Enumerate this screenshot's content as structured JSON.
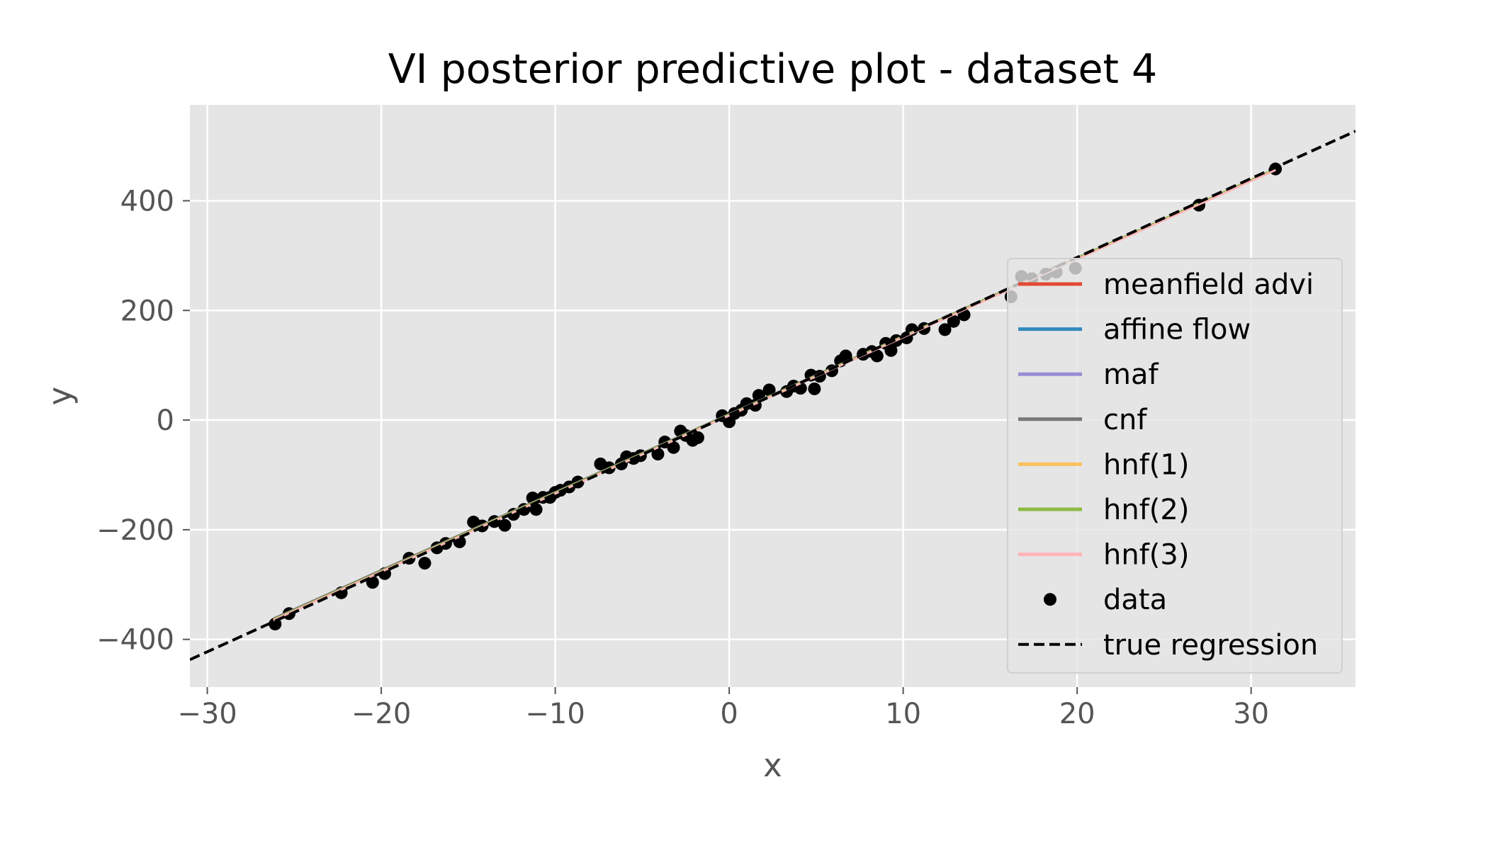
{
  "chart_data": {
    "type": "line",
    "title": "VI posterior predictive plot - dataset 4",
    "xlabel": "x",
    "ylabel": "y",
    "xlim": [
      -31,
      36
    ],
    "ylim": [
      -487,
      575
    ],
    "grid": true,
    "legend_position": "right",
    "xticks": [
      -30,
      -20,
      -10,
      0,
      10,
      20,
      30
    ],
    "xtick_labels": [
      "−30",
      "−20",
      "−10",
      "0",
      "10",
      "20",
      "30"
    ],
    "yticks": [
      -400,
      -200,
      0,
      200,
      400
    ],
    "ytick_labels": [
      "−400",
      "−200",
      "0",
      "200",
      "400"
    ],
    "series": [
      {
        "name": "meanfield advi",
        "kind": "line",
        "color": "#E24A33",
        "x": [
          -26.2,
          31.4
        ],
        "y": [
          -364,
          457
        ]
      },
      {
        "name": "affine flow",
        "kind": "line",
        "color": "#348ABD",
        "x": [
          -26.2,
          31.4
        ],
        "y": [
          -364,
          457
        ]
      },
      {
        "name": "maf",
        "kind": "line",
        "color": "#988ED5",
        "x": [
          -26.2,
          31.4
        ],
        "y": [
          -364,
          457
        ]
      },
      {
        "name": "cnf",
        "kind": "line",
        "color": "#777777",
        "x": [
          -26.2,
          31.4
        ],
        "y": [
          -362,
          458
        ]
      },
      {
        "name": "hnf(1)",
        "kind": "line",
        "color": "#FBC15E",
        "x": [
          -26.2,
          31.4
        ],
        "y": [
          -364,
          457
        ]
      },
      {
        "name": "hnf(2)",
        "kind": "line",
        "color": "#8EBA42",
        "x": [
          -26.2,
          31.4
        ],
        "y": [
          -364,
          458
        ]
      },
      {
        "name": "hnf(3)",
        "kind": "line",
        "color": "#FFB5B8",
        "x": [
          -26.2,
          31.4
        ],
        "y": [
          -365,
          456
        ]
      },
      {
        "name": "data",
        "kind": "scatter",
        "color": "#000000",
        "x": [
          -26.1,
          -25.3,
          -22.3,
          -20.5,
          -19.8,
          -18.4,
          -17.5,
          -16.8,
          -16.3,
          -15.5,
          -14.7,
          -14.2,
          -13.5,
          -12.9,
          -12.4,
          -11.8,
          -11.3,
          -11.1,
          -10.7,
          -10.3,
          -10.0,
          -9.7,
          -9.2,
          -8.7,
          -7.4,
          -6.9,
          -6.2,
          -5.9,
          -5.5,
          -5.1,
          -4.1,
          -3.7,
          -3.2,
          -2.8,
          -2.5,
          -2.1,
          -1.8,
          -0.4,
          0.0,
          0.3,
          0.7,
          1.0,
          1.5,
          1.7,
          2.3,
          3.3,
          3.7,
          4.1,
          4.7,
          4.9,
          5.2,
          5.9,
          6.4,
          6.7,
          7.7,
          8.2,
          8.5,
          9.0,
          9.3,
          9.6,
          10.2,
          10.5,
          11.2,
          12.4,
          12.9,
          13.5,
          16.2,
          16.8,
          17.4,
          18.2,
          18.8,
          19.9,
          27.0,
          31.4
        ],
        "y": [
          -372,
          -353,
          -315,
          -296,
          -280,
          -252,
          -261,
          -233,
          -225,
          -222,
          -186,
          -193,
          -185,
          -192,
          -172,
          -163,
          -142,
          -163,
          -141,
          -141,
          -132,
          -128,
          -122,
          -113,
          -80,
          -87,
          -80,
          -67,
          -70,
          -65,
          -62,
          -40,
          -50,
          -20,
          -28,
          -37,
          -32,
          8,
          -3,
          12,
          18,
          30,
          27,
          45,
          55,
          52,
          62,
          58,
          82,
          57,
          80,
          90,
          108,
          117,
          120,
          125,
          117,
          140,
          127,
          145,
          150,
          165,
          167,
          165,
          180,
          192,
          225,
          262,
          258,
          266,
          270,
          277,
          392,
          458
        ]
      },
      {
        "name": "true regression",
        "kind": "line",
        "color": "#000000",
        "dashed": true,
        "x": [
          -31,
          36
        ],
        "y": [
          -437,
          527
        ]
      }
    ]
  }
}
